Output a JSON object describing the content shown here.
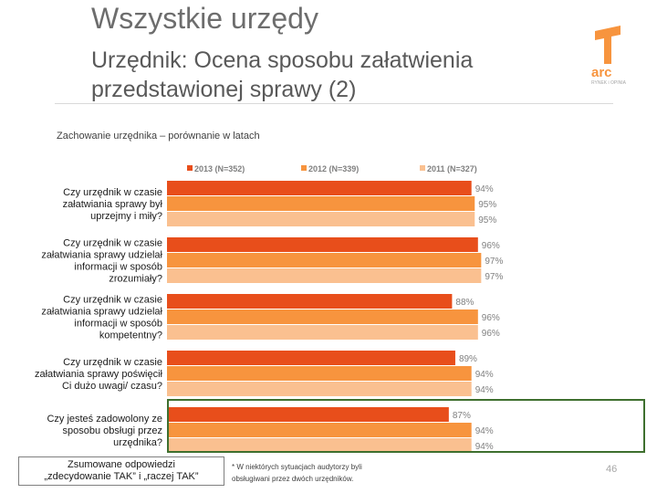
{
  "header": {
    "title": "Wszystkie urzędy",
    "subtitle": "Urzędnik: Ocena sposobu załatwienia przedstawionej sprawy (2)"
  },
  "logo": {
    "text": "arc",
    "tagline": "RYNEK i OPINIA"
  },
  "chart_subtitle": "Zachowanie urzędnika – porównanie w latach",
  "chart_data": {
    "type": "bar",
    "orientation": "horizontal",
    "title": "Zachowanie urzędnika – porównanie w latach",
    "xlim": [
      0,
      100
    ],
    "grid": false,
    "legend_position": "top",
    "categories": [
      "Czy urzędnik w czasie załatwiania sprawy był uprzejmy i miły?",
      "Czy urzędnik w czasie załatwiania sprawy udzielał informacji w sposób zrozumiały?",
      "Czy urzędnik w czasie załatwiania sprawy udzielał informacji w sposób kompetentny?",
      "Czy urzędnik w czasie załatwiania sprawy poświęcił Ci dużo uwagi/ czasu?",
      "Czy jesteś zadowolony ze sposobu obsługi przez urzędnika?"
    ],
    "category_lines": [
      [
        "Czy urzędnik w czasie",
        "załatwiania sprawy był",
        "uprzejmy i miły?"
      ],
      [
        "Czy urzędnik w czasie",
        "załatwiania sprawy udzielał",
        "informacji w sposób",
        "zrozumiały?"
      ],
      [
        "Czy urzędnik w czasie",
        "załatwiania sprawy udzielał",
        "informacji w sposób",
        "kompetentny?"
      ],
      [
        "Czy urzędnik w czasie",
        "załatwiania sprawy poświęcił",
        "Ci dużo uwagi/ czasu?"
      ],
      [
        "Czy jesteś zadowolony ze",
        "sposobu obsługi przez",
        "urzędnika?"
      ]
    ],
    "series": [
      {
        "name": "2013 (N=352)",
        "color": "#e84e1b",
        "values": [
          94,
          96,
          88,
          89,
          87
        ],
        "labels": [
          "94%",
          "96%",
          "88%",
          "89%",
          "87%"
        ]
      },
      {
        "name": "2012 (N=339)",
        "color": "#f7943e",
        "values": [
          95,
          97,
          96,
          94,
          94
        ],
        "labels": [
          "95%",
          "97%",
          "96%",
          "94%",
          "94%"
        ]
      },
      {
        "name": "2011 (N=327)",
        "color": "#fac090",
        "values": [
          95,
          97,
          96,
          94,
          94
        ],
        "labels": [
          "95%",
          "97%",
          "96%",
          "94%",
          "94%"
        ]
      }
    ],
    "highlighted_category_index": 4
  },
  "footer": {
    "note_box_line1": "Zsumowane odpowiedzi",
    "note_box_line2": "„zdecydowanie TAK” i „raczej TAK”",
    "asterisk_line1": "* W niektórych sytuacjach audytorzy byli",
    "asterisk_line2": "obsługiwani przez dwóch urzędników.",
    "page_number": "46"
  }
}
